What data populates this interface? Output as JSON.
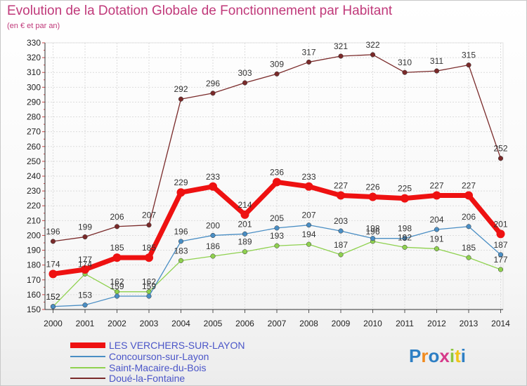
{
  "chart_data": {
    "type": "line",
    "title": "Evolution de la Dotation Globale de Fonctionnement par Habitant",
    "subtitle": "(en € et par an)",
    "xlabel": "",
    "ylabel": "",
    "ylim": [
      150,
      330
    ],
    "ytick_step": 10,
    "x": [
      "2000",
      "2001",
      "2002",
      "2003",
      "2004",
      "2005",
      "2006",
      "2007",
      "2008",
      "2009",
      "2010",
      "2011",
      "2012",
      "2013",
      "2014"
    ],
    "series": [
      {
        "name": "Doué-la-Fontaine",
        "color": "#7a2a2a",
        "values": [
          196,
          199,
          206,
          207,
          292,
          296,
          303,
          309,
          317,
          321,
          322,
          310,
          311,
          315,
          252
        ]
      },
      {
        "name": "Saint-Macaire-du-Bois",
        "color": "#8fd14f",
        "values": [
          152,
          174,
          162,
          162,
          183,
          186,
          189,
          193,
          194,
          187,
          196,
          192,
          191,
          185,
          177
        ]
      },
      {
        "name": "Concourson-sur-Layon",
        "color": "#4a8ec4",
        "values": [
          152,
          153,
          159,
          159,
          196,
          200,
          201,
          205,
          207,
          203,
          198,
          198,
          204,
          206,
          187
        ]
      },
      {
        "name": "LES VERCHERS-SUR-LAYON",
        "color": "#ee1111",
        "values": [
          174,
          177,
          185,
          185,
          229,
          233,
          214,
          236,
          233,
          227,
          226,
          225,
          227,
          227,
          201
        ]
      }
    ],
    "legend_order": [
      "LES VERCHERS-SUR-LAYON",
      "Concourson-sur-Layon",
      "Saint-Macaire-du-Bois",
      "Doué-la-Fontaine"
    ],
    "legend_position": "bottom-left",
    "grid": true
  },
  "branding": {
    "logo_text": "Proxiti",
    "logo_colors": [
      "#2e7fc4",
      "#f08a1e",
      "#2e7fc4",
      "#d63a8a",
      "#8cc63f",
      "#f0c419",
      "#2e7fc4"
    ]
  }
}
